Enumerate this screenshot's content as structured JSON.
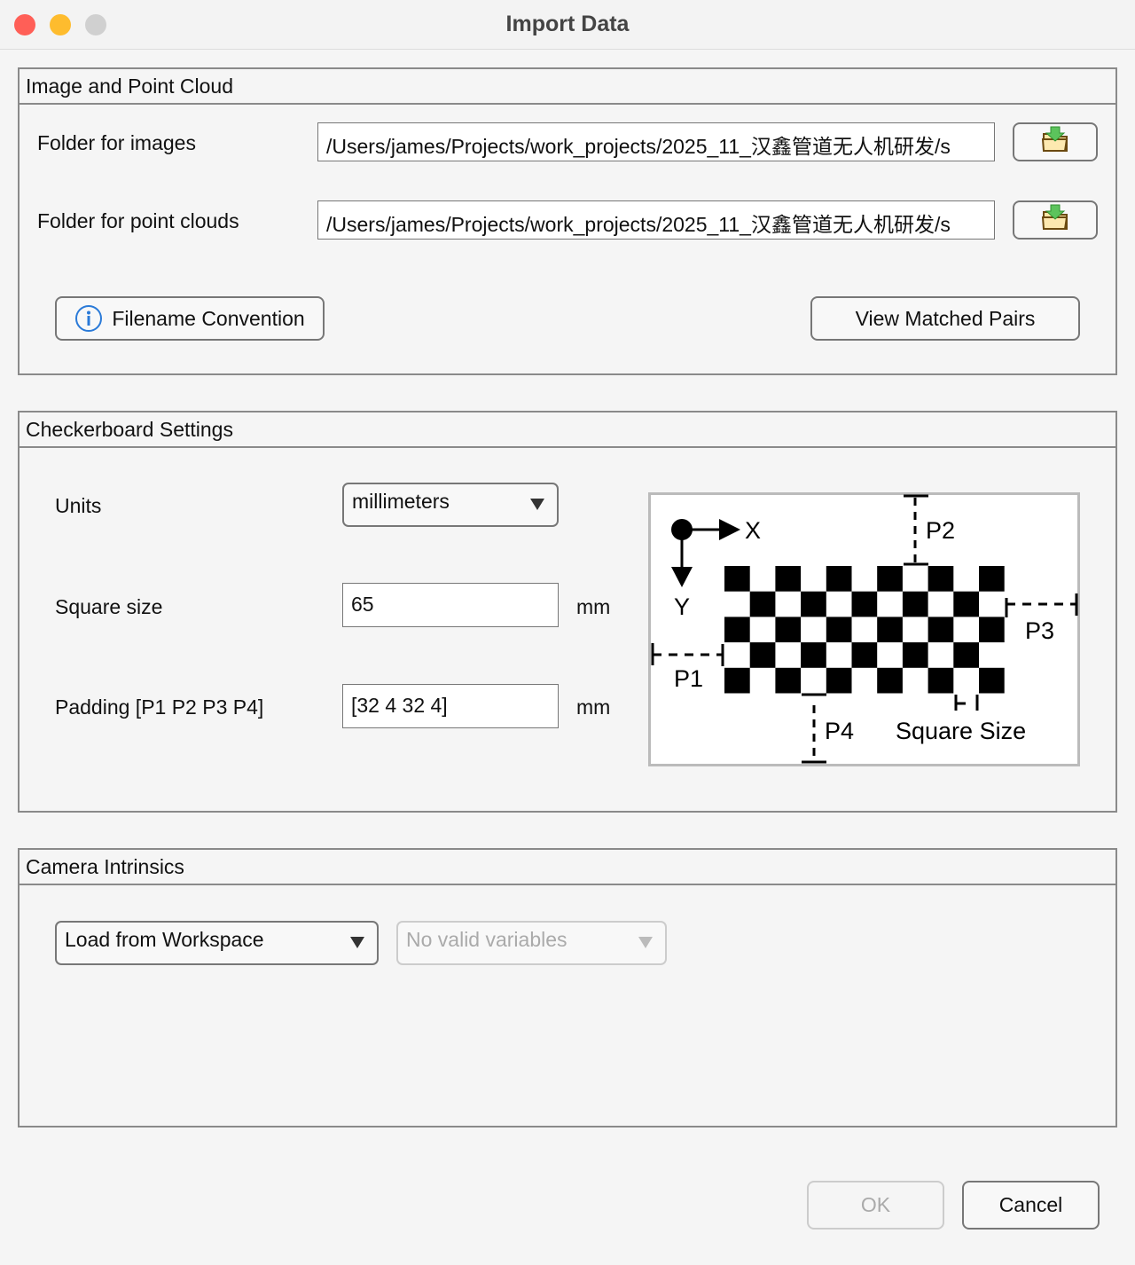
{
  "window": {
    "title": "Import Data",
    "controls": {
      "close": "#ff5f57",
      "minimize": "#febc2e",
      "zoom": "#d0d0d0"
    }
  },
  "image_panel": {
    "title": "Image and Point Cloud",
    "images_label": "Folder for images",
    "images_value": "/Users/james/Projects/work_projects/2025_11_汉鑫管道无人机研发/s",
    "clouds_label": "Folder for point clouds",
    "clouds_value": "/Users/james/Projects/work_projects/2025_11_汉鑫管道无人机研发/s",
    "browse_icon": "folder-import-icon",
    "filename_convention": "Filename Convention",
    "view_pairs": "View Matched Pairs"
  },
  "checker_panel": {
    "title": "Checkerboard Settings",
    "units_label": "Units",
    "units_value": "millimeters",
    "square_label": "Square size",
    "square_value": "65",
    "square_unit": "mm",
    "padding_label": "Padding [P1 P2 P3 P4]",
    "padding_value": "[32 4 32 4]",
    "padding_unit": "mm",
    "diagram": {
      "x": "X",
      "y": "Y",
      "p1": "P1",
      "p2": "P2",
      "p3": "P3",
      "p4": "P4",
      "square_size": "Square Size"
    }
  },
  "intrinsics_panel": {
    "title": "Camera Intrinsics",
    "source_value": "Load from Workspace",
    "variable_value": "No valid variables"
  },
  "footer": {
    "ok": "OK",
    "cancel": "Cancel"
  }
}
